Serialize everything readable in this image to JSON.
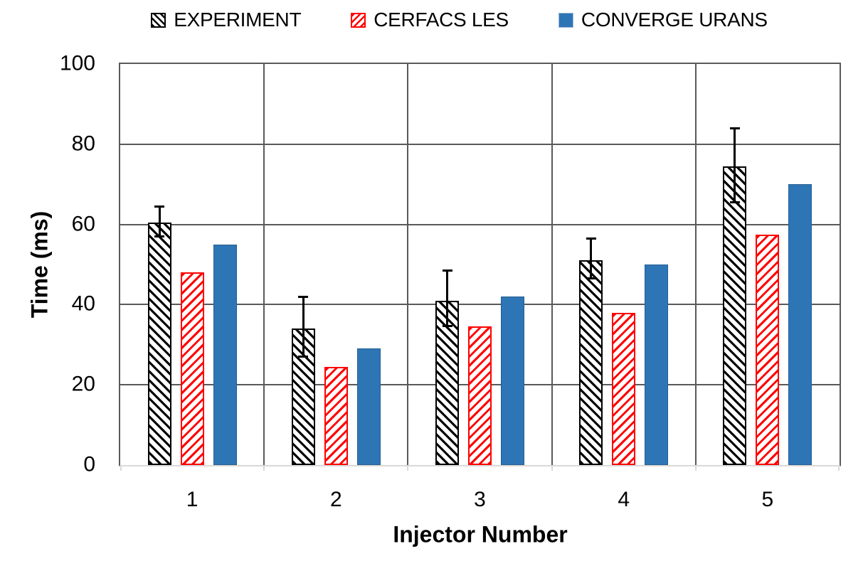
{
  "chart_data": {
    "type": "bar",
    "title": "",
    "xlabel": "Injector Number",
    "ylabel": "Time (ms)",
    "categories": [
      "1",
      "2",
      "3",
      "4",
      "5"
    ],
    "ylim": [
      0,
      100
    ],
    "yticks": [
      0,
      20,
      40,
      60,
      80,
      100
    ],
    "grid": "horizontal-major-and-vertical-category-separators",
    "legend_position": "top",
    "series": [
      {
        "name": "EXPERIMENT",
        "swatch_class": "hatch-black",
        "color": "#000000",
        "hatch": "\\",
        "values": [
          60.5,
          34,
          41,
          51,
          74.5
        ],
        "error_bars": {
          "high": [
            64.5,
            42,
            48.5,
            56.5,
            84
          ],
          "low": [
            57,
            27,
            34.5,
            46.5,
            65.5
          ]
        }
      },
      {
        "name": "CERFACS LES",
        "swatch_class": "hatch-red",
        "color": "#FF0000",
        "hatch": "/",
        "values": [
          48,
          24.5,
          34.5,
          38,
          57.5
        ]
      },
      {
        "name": "CONVERGE URANS",
        "swatch_class": "solid-blue",
        "color": "#2E75B6",
        "border_color": "#255E91",
        "values": [
          55,
          29,
          42,
          50,
          70
        ]
      }
    ],
    "colors": {
      "gridline": "#595959",
      "axis_baseline": "#D9D9D9",
      "text": "#000000",
      "background": "#FFFFFF"
    }
  }
}
